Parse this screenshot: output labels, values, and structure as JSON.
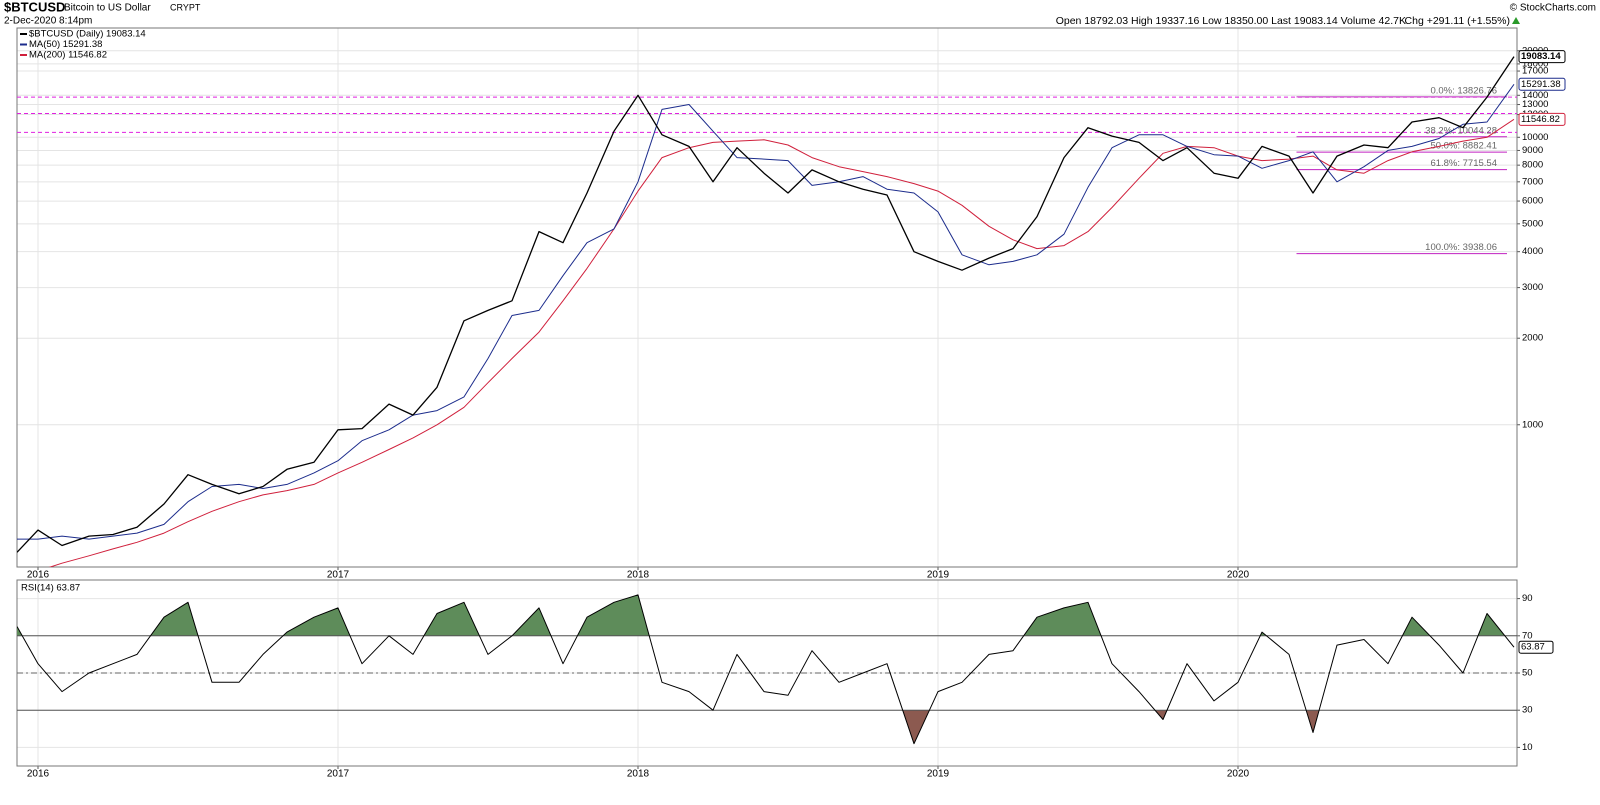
{
  "header": {
    "symbol": "$BTCUSD",
    "name": "Bitcoin to US Dollar",
    "exchange": "CRYPT",
    "date": "2-Dec-2020 8:14pm",
    "quote": "Open 18792.03  High 19337.16  Low 18350.00  Last 19083.14  Volume 42.7K",
    "change": "Chg +291.11 (+1.55%)",
    "credit": "© StockCharts.com"
  },
  "chart_data": [
    {
      "type": "line",
      "log_y": true,
      "grid": true,
      "xlim": [
        2015.93,
        2020.93
      ],
      "xticks": [
        2016,
        2017,
        2018,
        2019,
        2020
      ],
      "ylim": [
        320,
        24000
      ],
      "yticks": [
        1000,
        2000,
        3000,
        4000,
        5000,
        6000,
        7000,
        8000,
        9000,
        10000,
        12000,
        13000,
        14000,
        17000,
        18000,
        20000
      ],
      "x": [
        2015.93,
        2016.0,
        2016.08,
        2016.17,
        2016.25,
        2016.33,
        2016.42,
        2016.5,
        2016.58,
        2016.67,
        2016.75,
        2016.83,
        2016.92,
        2017.0,
        2017.08,
        2017.17,
        2017.25,
        2017.33,
        2017.42,
        2017.5,
        2017.58,
        2017.67,
        2017.75,
        2017.83,
        2017.92,
        2018.0,
        2018.08,
        2018.17,
        2018.25,
        2018.33,
        2018.42,
        2018.5,
        2018.58,
        2018.67,
        2018.75,
        2018.83,
        2018.92,
        2019.0,
        2019.08,
        2019.17,
        2019.25,
        2019.33,
        2019.42,
        2019.5,
        2019.58,
        2019.67,
        2019.75,
        2019.83,
        2019.92,
        2020.0,
        2020.08,
        2020.17,
        2020.25,
        2020.33,
        2020.42,
        2020.5,
        2020.58,
        2020.67,
        2020.75,
        2020.83,
        2020.92
      ],
      "series": [
        {
          "name": "$BTCUSD (Daily) 19083.14",
          "last_label": "19083.14",
          "color": "#000000",
          "width": 1.3,
          "values": [
            360,
            430,
            380,
            410,
            415,
            440,
            530,
            670,
            620,
            575,
            610,
            700,
            740,
            960,
            970,
            1180,
            1080,
            1350,
            2300,
            2500,
            2700,
            4700,
            4300,
            6400,
            10500,
            14000,
            10200,
            9300,
            7000,
            9200,
            7500,
            6400,
            7700,
            7000,
            6600,
            6300,
            4000,
            3700,
            3450,
            3800,
            4100,
            5300,
            8500,
            10800,
            10100,
            9600,
            8300,
            9200,
            7500,
            7200,
            9300,
            8600,
            6400,
            8600,
            9400,
            9200,
            11300,
            11700,
            10800,
            13800,
            19083.14
          ]
        },
        {
          "name": "MA(50) 15291.38",
          "last_label": "15291.38",
          "color": "#1c2c8c",
          "width": 1,
          "values": [
            400,
            400,
            410,
            400,
            410,
            420,
            450,
            540,
            610,
            620,
            600,
            620,
            680,
            750,
            880,
            960,
            1080,
            1120,
            1250,
            1700,
            2400,
            2500,
            3300,
            4300,
            4800,
            7000,
            12500,
            13000,
            10500,
            8500,
            8400,
            8300,
            6800,
            7000,
            7300,
            6600,
            6400,
            5500,
            3900,
            3600,
            3700,
            3900,
            4600,
            6700,
            9200,
            10200,
            10200,
            9300,
            8700,
            8600,
            7800,
            8300,
            8900,
            7000,
            7900,
            9000,
            9300,
            9900,
            11100,
            11300,
            15291.38
          ]
        },
        {
          "name": "MA(200) 11546.82",
          "last_label": "11546.82",
          "color": "#d0203c",
          "width": 1,
          "values": [
            300,
            310,
            330,
            350,
            370,
            390,
            420,
            460,
            500,
            540,
            570,
            590,
            620,
            680,
            740,
            820,
            900,
            1000,
            1150,
            1400,
            1700,
            2100,
            2700,
            3500,
            4800,
            6500,
            8500,
            9200,
            9600,
            9700,
            9800,
            9400,
            8500,
            7900,
            7600,
            7300,
            6900,
            6500,
            5800,
            4900,
            4400,
            4100,
            4200,
            4700,
            5700,
            7200,
            8800,
            9300,
            9200,
            8600,
            8300,
            8400,
            8600,
            7700,
            7500,
            8300,
            8900,
            9300,
            9700,
            10000,
            11546.82
          ]
        }
      ],
      "hlines": [
        13800,
        12100,
        10400
      ],
      "hline_color": "#e020e0",
      "fib_color": "#c020c0",
      "fib_levels": [
        {
          "label": "0.0%: 13826.76",
          "value": 13826.76
        },
        {
          "label": "38.2%: 10044.28",
          "value": 10044.28
        },
        {
          "label": "50.0%: 8882.41",
          "value": 8882.41
        },
        {
          "label": "61.8%: 7715.54",
          "value": 7715.54
        },
        {
          "label": "100.0%: 3938.06",
          "value": 3938.06
        }
      ]
    },
    {
      "type": "line",
      "title": "RSI(14) 63.87",
      "last_label": "63.87",
      "grid": true,
      "xlim": [
        2015.93,
        2020.93
      ],
      "xticks": [
        2016,
        2017,
        2018,
        2019,
        2020
      ],
      "ylim": [
        0,
        100
      ],
      "yticks": [
        10,
        30,
        50,
        70,
        90
      ],
      "overbought": 70,
      "oversold": 30,
      "midline": 50,
      "overbought_color": "#5e8c5a",
      "oversold_color": "#8c5a50",
      "color": "#000000",
      "x": [
        2015.93,
        2016.0,
        2016.08,
        2016.17,
        2016.25,
        2016.33,
        2016.42,
        2016.5,
        2016.58,
        2016.67,
        2016.75,
        2016.83,
        2016.92,
        2017.0,
        2017.08,
        2017.17,
        2017.25,
        2017.33,
        2017.42,
        2017.5,
        2017.58,
        2017.67,
        2017.75,
        2017.83,
        2017.92,
        2018.0,
        2018.08,
        2018.17,
        2018.25,
        2018.33,
        2018.42,
        2018.5,
        2018.58,
        2018.67,
        2018.75,
        2018.83,
        2018.92,
        2019.0,
        2019.08,
        2019.17,
        2019.25,
        2019.33,
        2019.42,
        2019.5,
        2019.58,
        2019.67,
        2019.75,
        2019.83,
        2019.92,
        2020.0,
        2020.08,
        2020.17,
        2020.25,
        2020.33,
        2020.42,
        2020.5,
        2020.58,
        2020.67,
        2020.75,
        2020.83,
        2020.92
      ],
      "values": [
        75,
        55,
        40,
        50,
        55,
        60,
        80,
        88,
        45,
        45,
        60,
        72,
        80,
        85,
        55,
        70,
        60,
        82,
        88,
        60,
        70,
        85,
        55,
        80,
        88,
        92,
        45,
        40,
        30,
        60,
        40,
        38,
        62,
        45,
        50,
        55,
        12,
        40,
        45,
        60,
        62,
        80,
        85,
        88,
        55,
        40,
        25,
        55,
        35,
        45,
        72,
        60,
        18,
        65,
        68,
        55,
        80,
        65,
        50,
        82,
        63.87
      ]
    }
  ]
}
